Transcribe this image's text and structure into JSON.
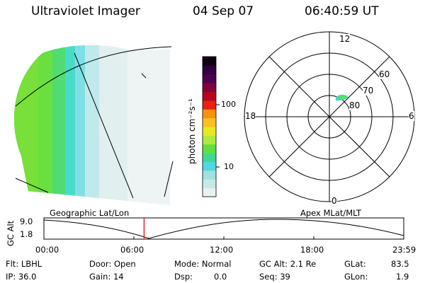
{
  "header": {
    "instrument": "Ultraviolet Imager",
    "date": "04 Sep 07",
    "time": "06:40:59 UT"
  },
  "colorbar": {
    "unit_label": "photon cm⁻²s⁻¹",
    "tick_labels": [
      "100",
      "10"
    ],
    "colors": [
      "#e8f2f2",
      "#c8e8e8",
      "#a0e0e0",
      "#50d8e0",
      "#40d890",
      "#60e040",
      "#b0e840",
      "#e8e820",
      "#f8c020",
      "#f89010",
      "#e82010",
      "#b80020",
      "#800040",
      "#500050",
      "#300040",
      "#100010"
    ]
  },
  "polar_plot": {
    "mlt_labels": [
      "12",
      "18",
      "6",
      "0"
    ],
    "lat_labels": [
      "60",
      "70",
      "80"
    ]
  },
  "altitude_plot": {
    "left_label": "Geographic Lat/Lon",
    "right_label": "Apex MLat/MLT",
    "axis_label": "GC Alt",
    "y_ticks": [
      "9.0",
      "1.8"
    ],
    "x_ticks": [
      "00:00",
      "06:00",
      "12:00",
      "18:00",
      "23:59"
    ],
    "current_time_hours": 6.68
  },
  "info": {
    "flt": "Flt: LBHL",
    "ip": "IP: 36.0",
    "door": "Door: Open",
    "gain": "Gain: 14",
    "mode": "Mode: Normal",
    "dsp": "Dsp:",
    "dsp_value": "0.0",
    "gc_alt": "GC Alt: 2.1 Re",
    "seq": "Seq: 39",
    "glat_label": "GLat:",
    "glat_value": "83.5",
    "glon_label": "GLon:",
    "glon_value": "1.9"
  }
}
